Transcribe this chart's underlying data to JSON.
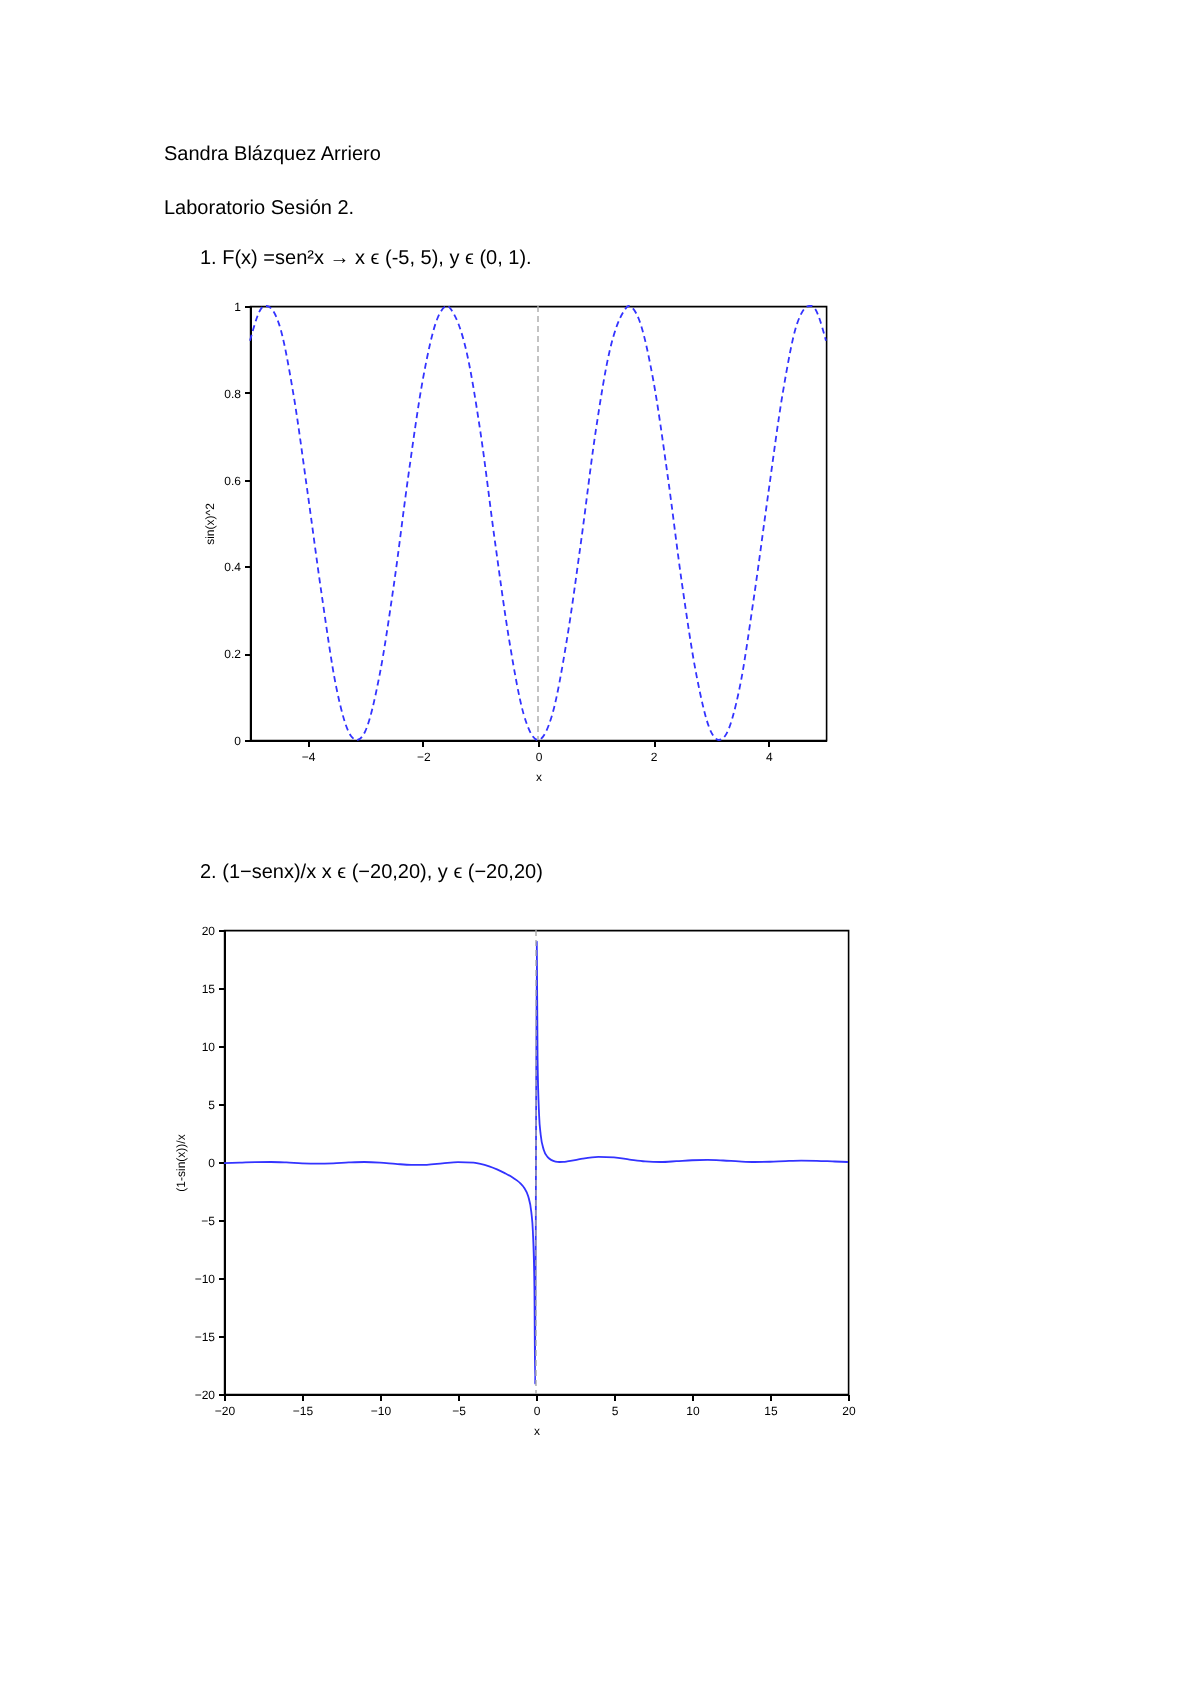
{
  "chart_data": [
    {
      "type": "line",
      "title": "1.   F(x) =sen²x → x ϵ (-5, 5), y ϵ (0, 1).",
      "annotations": [
        "Sandra Blázquez Arriero",
        "Laboratorio Sesión 2."
      ],
      "xlabel": "x",
      "ylabel": "sin(x)^2",
      "xlim": [
        -5,
        5
      ],
      "ylim": [
        0,
        1
      ],
      "xticks": [
        -4,
        -2,
        0,
        2,
        4
      ],
      "yticks": [
        0,
        0.2,
        0.4,
        0.6,
        0.8,
        1
      ],
      "grid": false,
      "line_style": "dashed",
      "ref_lines": [
        {
          "axis": "x",
          "value": 0,
          "label": null,
          "color": "#aaaaaa",
          "line_style": "dashed"
        }
      ],
      "series": [
        {
          "color": "#3333ff",
          "x": [
            -5,
            -4.75,
            -4.71,
            -4.5,
            -4.25,
            -4,
            -3.75,
            -3.5,
            -3.25,
            -3.14,
            -3,
            -2.75,
            -2.5,
            -2.25,
            -2,
            -1.75,
            -1.57,
            -1.5,
            -1.25,
            -1,
            -0.75,
            -0.5,
            -0.25,
            0,
            0.25,
            0.5,
            0.75,
            1,
            1.25,
            1.5,
            1.57,
            1.75,
            2,
            2.25,
            2.5,
            2.75,
            3,
            3.14,
            3.25,
            3.5,
            3.75,
            4,
            4.25,
            4.5,
            4.71,
            4.75,
            5
          ],
          "values": [
            0.92,
            1.0,
            1,
            0.96,
            0.8,
            0.57,
            0.33,
            0.12,
            0.01,
            0,
            0.02,
            0.15,
            0.36,
            0.61,
            0.83,
            0.97,
            1,
            0.99,
            0.9,
            0.71,
            0.46,
            0.23,
            0.06,
            0,
            0.06,
            0.23,
            0.46,
            0.71,
            0.9,
            0.99,
            1,
            0.97,
            0.83,
            0.61,
            0.36,
            0.15,
            0.02,
            0,
            0.01,
            0.12,
            0.33,
            0.57,
            0.8,
            0.96,
            1,
            1.0,
            0.92
          ]
        }
      ]
    },
    {
      "type": "line",
      "title": "2.  (1−senx)/x   x ϵ (−20,20), y ϵ (−20,20)",
      "xlabel": "x",
      "ylabel": "(1-sin(x))/x",
      "xlim": [
        -20,
        20
      ],
      "ylim": [
        -20,
        20
      ],
      "xticks": [
        -20,
        -15,
        -10,
        -5,
        0,
        5,
        10,
        15,
        20
      ],
      "yticks": [
        -20,
        -15,
        -10,
        -5,
        0,
        5,
        10,
        15,
        20
      ],
      "grid": false,
      "line_style": "solid",
      "ref_lines": [
        {
          "axis": "x",
          "value": 0,
          "label": null,
          "color": "#aaaaaa",
          "line_style": "dashed"
        }
      ],
      "series": [
        {
          "color": "#3333ff",
          "x": [
            -20,
            -19,
            -18,
            -17,
            -16,
            -15,
            -14,
            -13,
            -12,
            -11,
            -10,
            -9,
            -8,
            -7,
            -6,
            -5,
            -4,
            -3,
            -2.5,
            -2,
            -1.5,
            -1.25,
            -1,
            -0.75,
            -0.5,
            -0.3,
            -0.2,
            -0.1,
            -0.055,
            0.05,
            0.1,
            0.2,
            0.3,
            0.5,
            0.75,
            1,
            1.25,
            1.5,
            1.75,
            2,
            2.5,
            3,
            4,
            5,
            6,
            7,
            8,
            9,
            10,
            11,
            12,
            13,
            14,
            15,
            16,
            17,
            18,
            19,
            20
          ],
          "values": [
            -0.1,
            -0.06,
            -0.01,
            0.0,
            -0.04,
            -0.11,
            -0.14,
            -0.11,
            -0.04,
            0.0,
            -0.05,
            -0.16,
            -0.25,
            -0.24,
            -0.12,
            -0.01,
            -0.06,
            -0.38,
            -0.64,
            -0.96,
            -1.33,
            -1.56,
            -1.84,
            -2.24,
            -2.96,
            -4.32,
            -5.99,
            -11.0,
            -19.18,
            19.0,
            9.0,
            4.01,
            2.35,
            1.04,
            0.42,
            0.16,
            0.04,
            0.0,
            0.01,
            0.05,
            0.16,
            0.29,
            0.44,
            0.39,
            0.21,
            0.05,
            0.0,
            0.07,
            0.15,
            0.18,
            0.13,
            0.05,
            0.0,
            0.02,
            0.08,
            0.12,
            0.1,
            0.05,
            0.0
          ]
        }
      ]
    }
  ]
}
